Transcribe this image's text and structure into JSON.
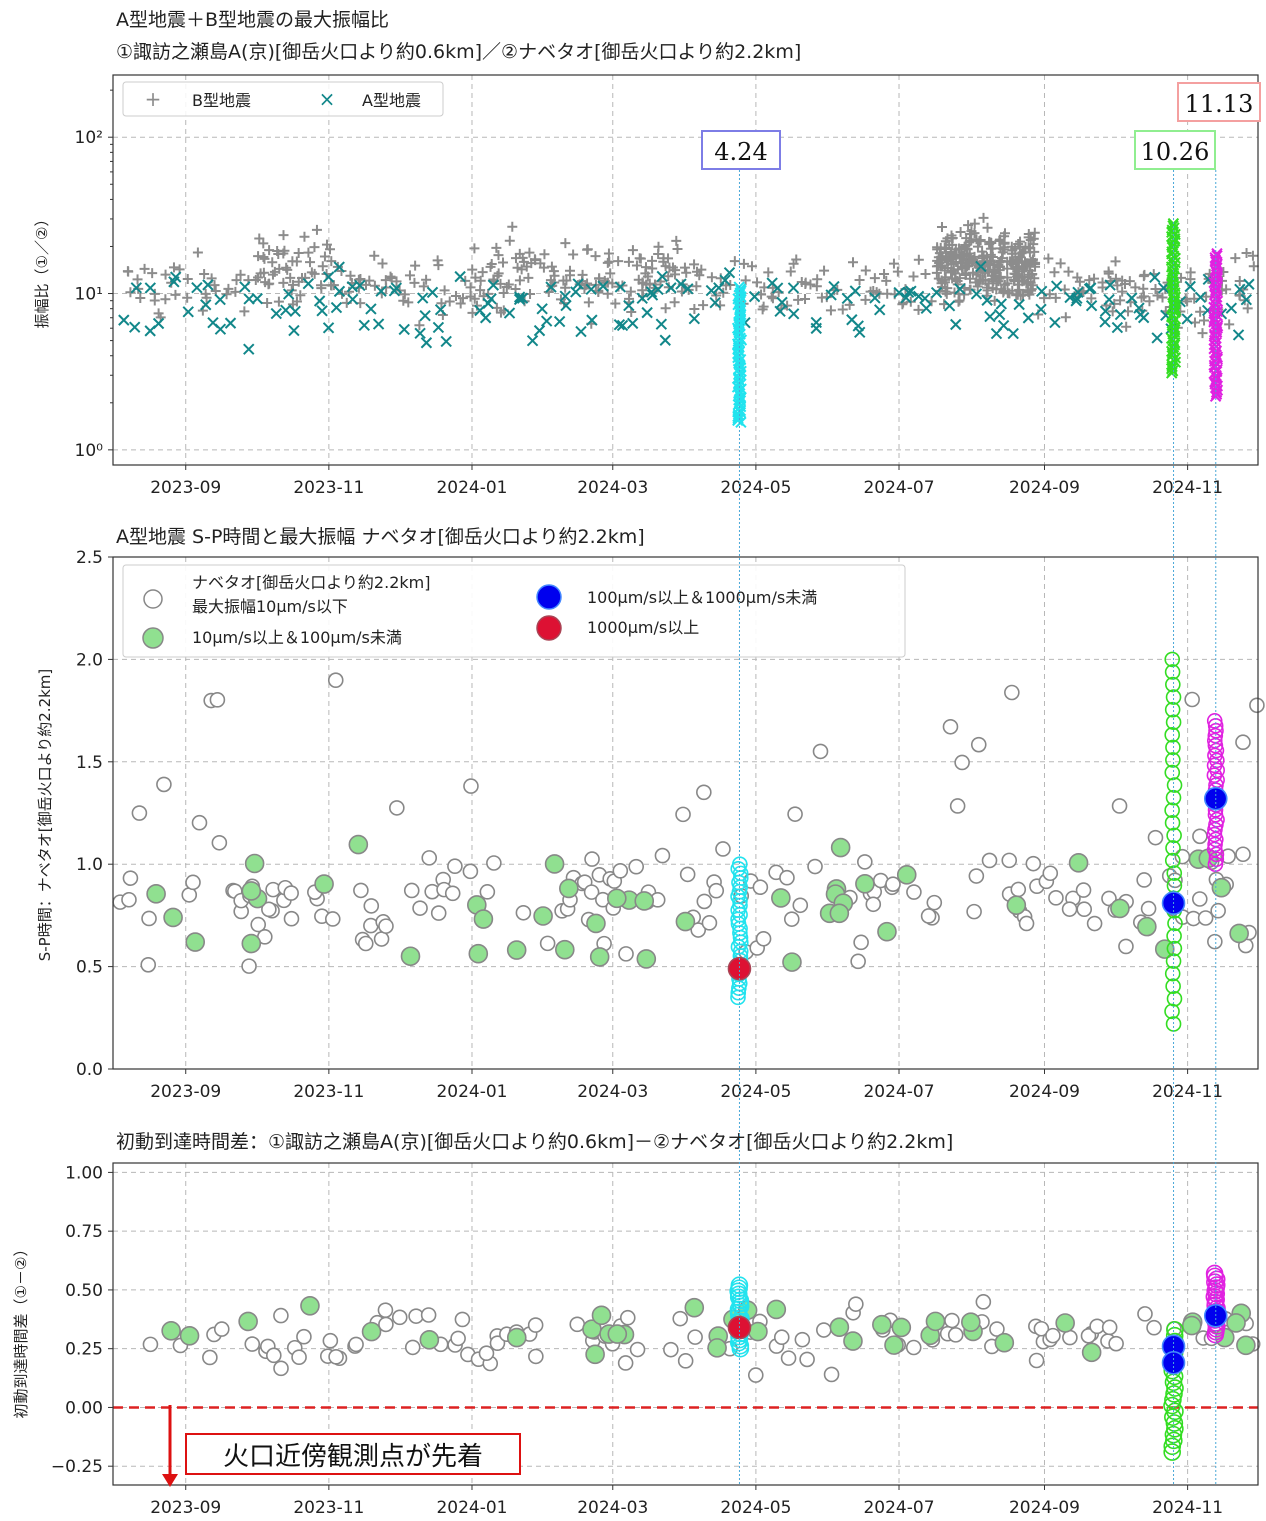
{
  "chart_data": [
    {
      "type": "scatter",
      "title_line1": "A型地震＋B型地震の最大振幅比",
      "title_line2": "①諏訪之瀬島A(京)[御岳火口より約0.6km]／②ナベタオ[御岳火口より約2.2km]",
      "ylabel": "振幅比（①／②）",
      "yscale": "log",
      "ylim": [
        0.8,
        250
      ],
      "yticks": [
        1,
        10,
        100
      ],
      "yticks_labels": [
        "10⁰",
        "10¹",
        "10²"
      ],
      "xlim": [
        "2023-08-01",
        "2024-12-01"
      ],
      "xticks": [
        "2023-09",
        "2023-11",
        "2024-01",
        "2024-03",
        "2024-05",
        "2024-07",
        "2024-09",
        "2024-11"
      ],
      "legend": {
        "position": "top-left",
        "entries": [
          "B型地震",
          "A型地震"
        ]
      },
      "series": [
        {
          "name": "B型地震",
          "marker": "+",
          "color": "#8c8c8c"
        },
        {
          "name": "A型地震",
          "marker": "x",
          "color": "#12878a"
        }
      ],
      "highlights": [
        {
          "label": "4.24",
          "date": "2024-04-24",
          "color": "#22e3ee",
          "box_color": "#7d7de6",
          "y_range": [
            1.5,
            11
          ]
        },
        {
          "label": "10.26",
          "date": "2024-10-26",
          "color": "#33dd22",
          "box_color": "#90ee90",
          "y_range": [
            3.1,
            28
          ]
        },
        {
          "label": "11.13",
          "date": "2024-11-13",
          "color": "#e022e0",
          "box_color": "#f4a0a0",
          "y_range": [
            2.2,
            18
          ]
        }
      ]
    },
    {
      "type": "scatter",
      "title": "A型地震 S-P時間と最大振幅 ナベタオ[御岳火口より約2.2km]",
      "ylabel": "S-P時間：ナベタオ[御岳火口より約2.2km]",
      "ylim": [
        0,
        2.5
      ],
      "yticks": [
        "0.0",
        "0.5",
        "1.0",
        "1.5",
        "2.0",
        "2.5"
      ],
      "xlim": [
        "2023-08-01",
        "2024-12-01"
      ],
      "xticks": [
        "2023-09",
        "2023-11",
        "2024-01",
        "2024-03",
        "2024-05",
        "2024-07",
        "2024-09",
        "2024-11"
      ],
      "legend": {
        "position": "top-left",
        "entries": [
          {
            "label1": "ナベタオ[御岳火口より約2.2km]",
            "label2": "最大振幅10μm/s以下",
            "color": "#ffffff"
          },
          {
            "label": "10μm/s以上＆100μm/s未満",
            "color": "#90e090"
          },
          {
            "label": "100μm/s以上＆1000μm/s未満",
            "color": "#0000ee"
          },
          {
            "label": "1000μm/s以上",
            "color": "#dd1133"
          }
        ]
      },
      "highlight_points": [
        {
          "date": "2024-04-24",
          "y": 0.49,
          "class": "1000μm/s以上"
        },
        {
          "date": "2024-10-26",
          "y": 0.81,
          "class": "100μm/s以上＆1000μm/s未満"
        },
        {
          "date": "2024-11-13",
          "y": 1.32,
          "class": "100μm/s以上＆1000μm/s未満"
        }
      ]
    },
    {
      "type": "scatter",
      "title": "初動到達時間差：①諏訪之瀬島A(京)[御岳火口より約0.6km]－②ナベタオ[御岳火口より約2.2km]",
      "ylabel": "初動到達時間差（①－②）",
      "ylim": [
        -0.33,
        1.04
      ],
      "yticks": [
        "−0.25",
        "0.00",
        "0.25",
        "0.50",
        "0.75",
        "1.00"
      ],
      "xlim": [
        "2023-08-01",
        "2024-12-01"
      ],
      "xticks": [
        "2023-09",
        "2023-11",
        "2024-01",
        "2024-03",
        "2024-05",
        "2024-07",
        "2024-09",
        "2024-11"
      ],
      "reference_line": {
        "y": 0,
        "color": "#dd2222",
        "style": "dashed"
      },
      "annotation": "火口近傍観測点が先着",
      "highlight_points": [
        {
          "date": "2024-04-24",
          "y": 0.34,
          "class": "1000μm/s以上"
        },
        {
          "date": "2024-10-26",
          "y": 0.26,
          "class": "100μm/s以上＆1000μm/s未満"
        },
        {
          "date": "2024-10-26",
          "y": 0.19,
          "class": "100μm/s以上＆1000μm/s未満"
        },
        {
          "date": "2024-11-13",
          "y": 0.39,
          "class": "100μm/s以上＆1000μm/s未満"
        }
      ]
    }
  ]
}
